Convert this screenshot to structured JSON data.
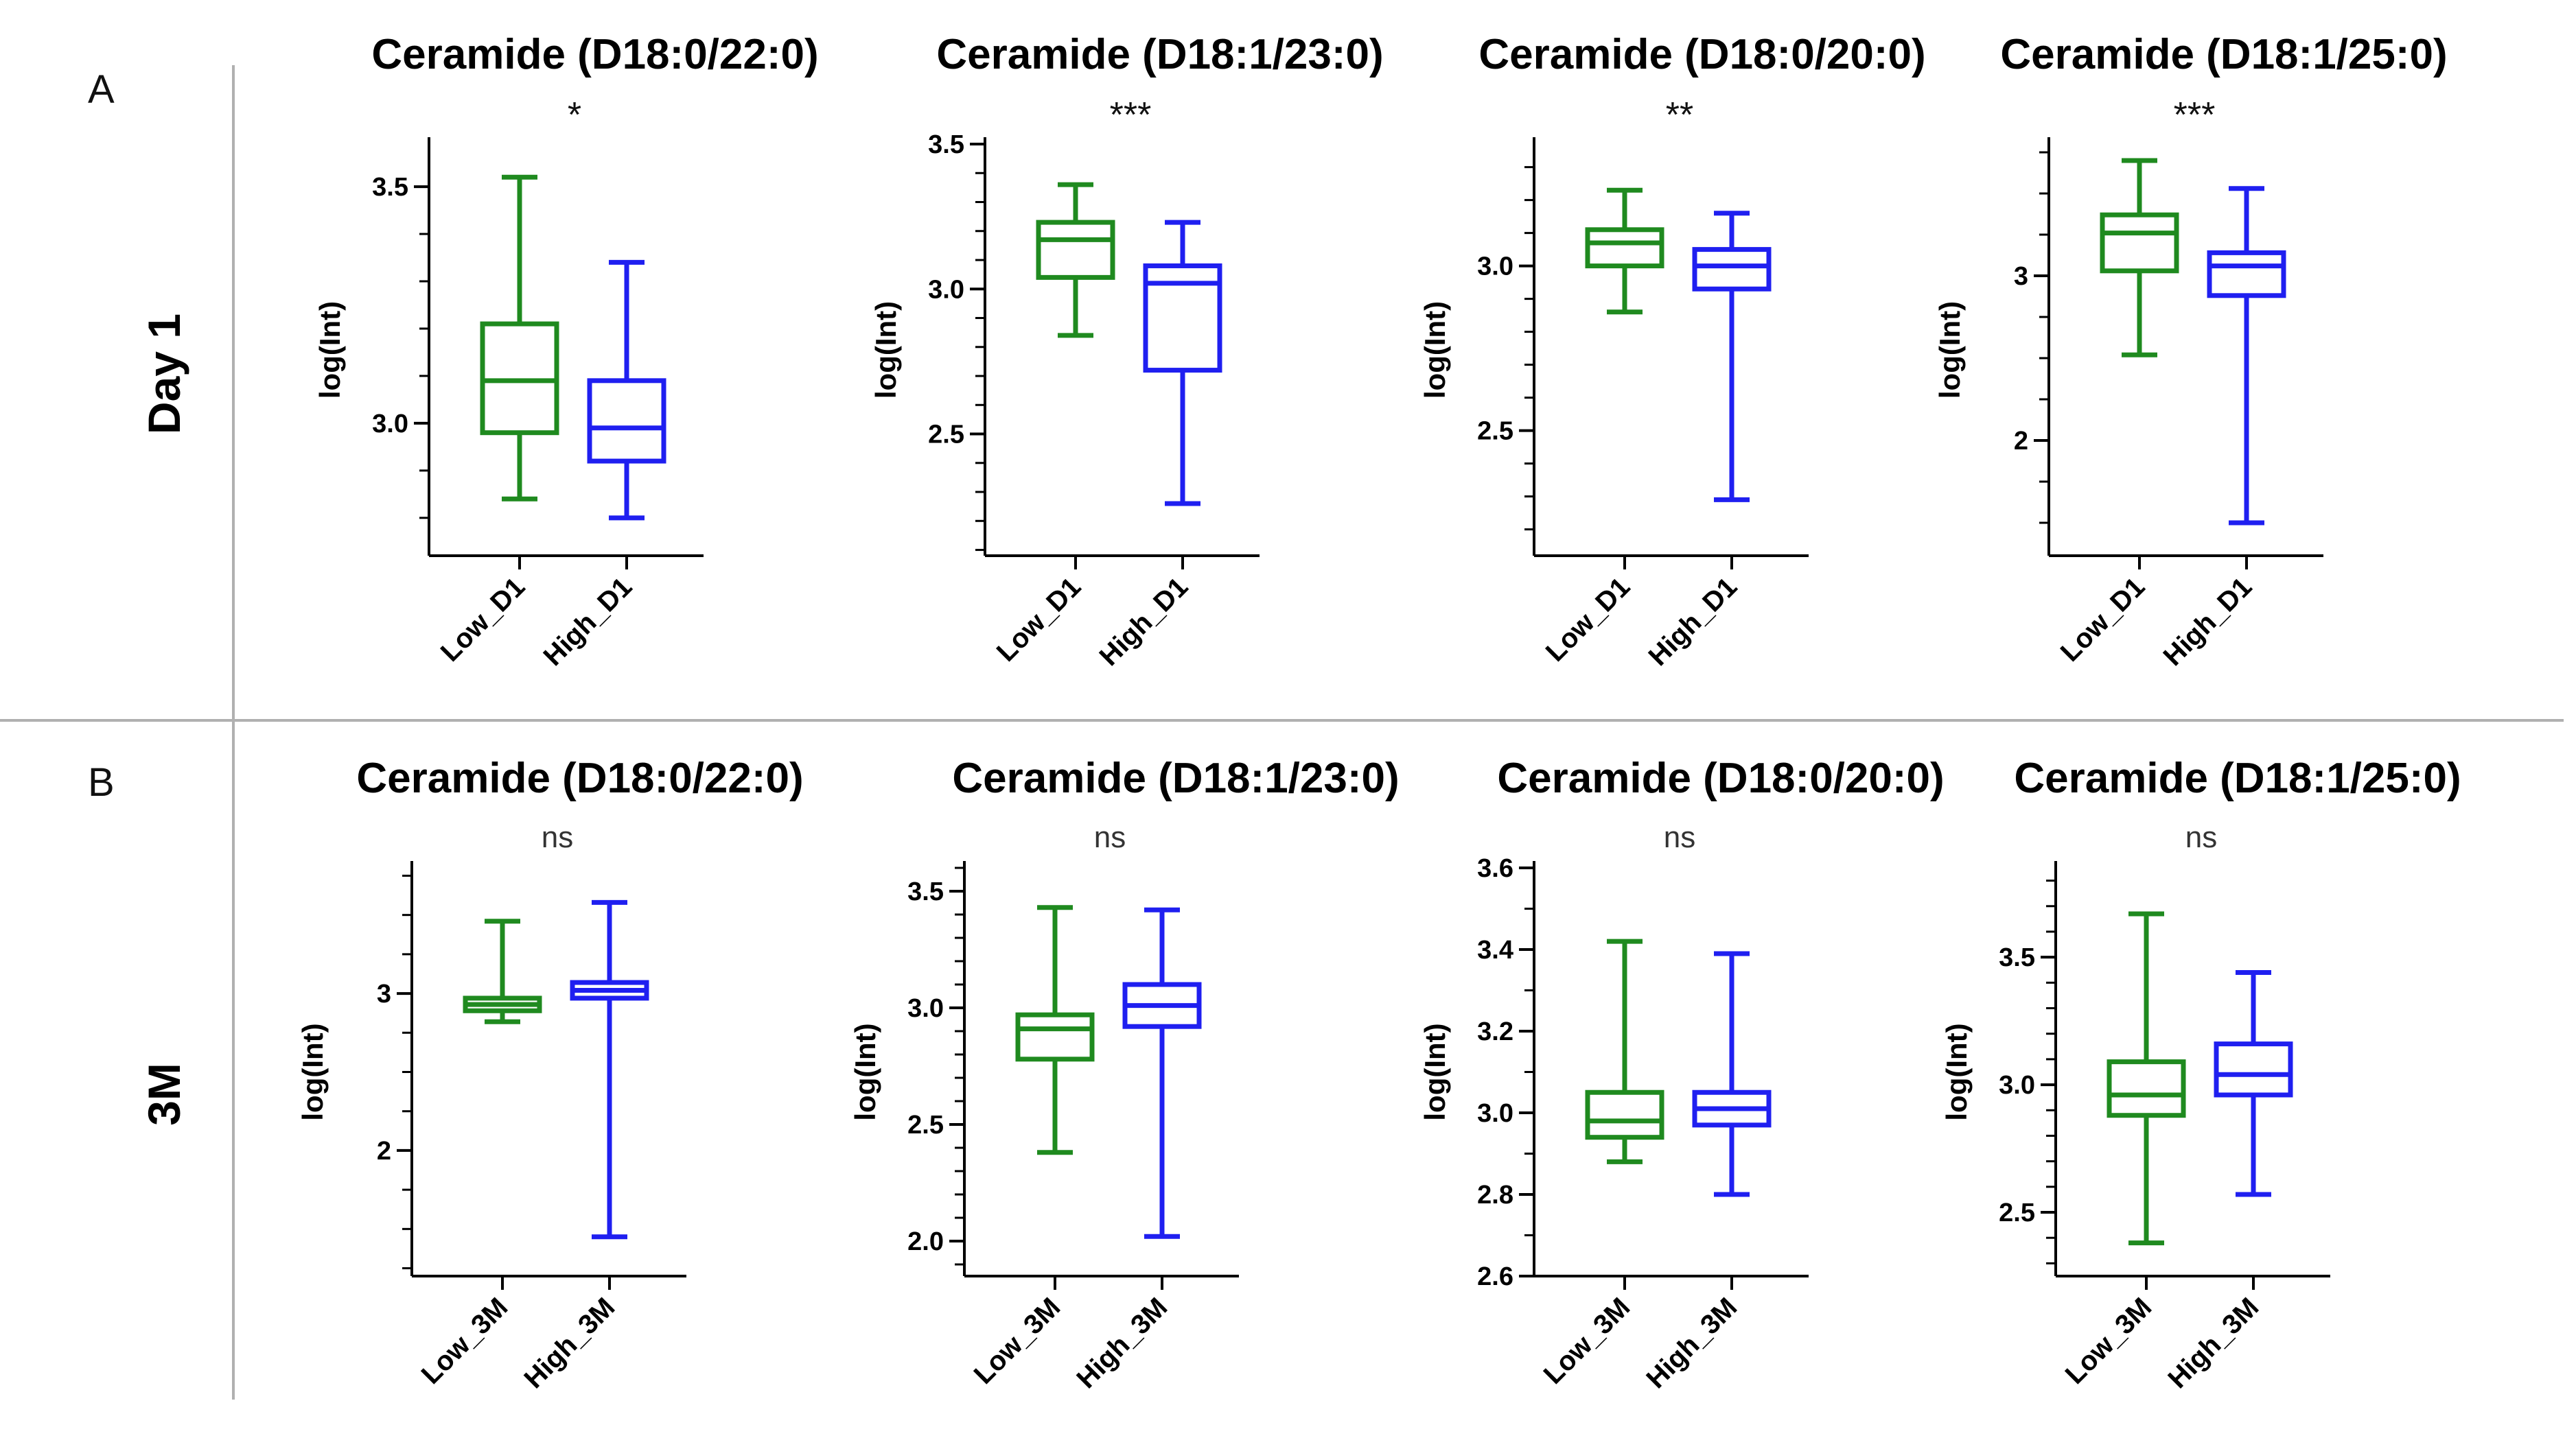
{
  "rows": [
    {
      "panel": "A",
      "label": "Day 1"
    },
    {
      "panel": "B",
      "label": "3M"
    }
  ],
  "colors": {
    "low": "#1f8a1f",
    "high": "#1f1ff0",
    "divider": "#b0b0b0",
    "axis": "#000000"
  },
  "chart_data": [
    {
      "type": "box",
      "title": "Ceramide (D18:0/22:0)",
      "significance": "*",
      "ylabel": "log(Int)",
      "ylim": [
        2.72,
        3.59
      ],
      "yticks": [
        3.0,
        3.5
      ],
      "ytick_labels": [
        "3.0",
        "3.5"
      ],
      "categories": [
        "Low_D1",
        "High_D1"
      ],
      "boxes": [
        {
          "name": "Low_D1",
          "min": 2.84,
          "q1": 2.98,
          "median": 3.09,
          "q3": 3.21,
          "max": 3.52
        },
        {
          "name": "High_D1",
          "min": 2.8,
          "q1": 2.92,
          "median": 2.99,
          "q3": 3.09,
          "max": 3.34
        }
      ]
    },
    {
      "type": "box",
      "title": "Ceramide (D18:1/23:0)",
      "significance": "***",
      "ylabel": "log(Int)",
      "ylim": [
        2.08,
        3.5
      ],
      "yticks": [
        2.5,
        3.0,
        3.5
      ],
      "ytick_labels": [
        "2.5",
        "3.0",
        "3.5"
      ],
      "categories": [
        "Low_D1",
        "High_D1"
      ],
      "boxes": [
        {
          "name": "Low_D1",
          "min": 2.84,
          "q1": 3.04,
          "median": 3.17,
          "q3": 3.23,
          "max": 3.36
        },
        {
          "name": "High_D1",
          "min": 2.26,
          "q1": 2.72,
          "median": 3.02,
          "q3": 3.08,
          "max": 3.23
        }
      ]
    },
    {
      "type": "box",
      "title": "Ceramide (D18:0/20:0)",
      "significance": "**",
      "ylabel": "log(Int)",
      "ylim": [
        2.12,
        3.37
      ],
      "yticks": [
        2.5,
        3.0
      ],
      "ytick_labels": [
        "2.5",
        "3.0"
      ],
      "categories": [
        "Low_D1",
        "High_D1"
      ],
      "boxes": [
        {
          "name": "Low_D1",
          "min": 2.86,
          "q1": 3.0,
          "median": 3.07,
          "q3": 3.11,
          "max": 3.23
        },
        {
          "name": "High_D1",
          "min": 2.29,
          "q1": 2.93,
          "median": 3.0,
          "q3": 3.05,
          "max": 3.16
        }
      ]
    },
    {
      "type": "box",
      "title": "Ceramide (D18:1/25:0)",
      "significance": "***",
      "ylabel": "log(Int)",
      "ylim": [
        1.3,
        3.8
      ],
      "yticks": [
        2,
        3
      ],
      "ytick_labels": [
        "2",
        "3"
      ],
      "categories": [
        "Low_D1",
        "High_D1"
      ],
      "boxes": [
        {
          "name": "Low_D1",
          "min": 2.52,
          "q1": 3.03,
          "median": 3.26,
          "q3": 3.37,
          "max": 3.7
        },
        {
          "name": "High_D1",
          "min": 1.5,
          "q1": 2.88,
          "median": 3.06,
          "q3": 3.14,
          "max": 3.53
        }
      ]
    },
    {
      "type": "box",
      "title": "Ceramide (D18:0/22:0)",
      "significance": "ns",
      "ylabel": "log(Int)",
      "ylim": [
        1.2,
        3.8
      ],
      "yticks": [
        2,
        3
      ],
      "ytick_labels": [
        "2",
        "3"
      ],
      "categories": [
        "Low_3M",
        "High_3M"
      ],
      "boxes": [
        {
          "name": "Low_3M",
          "min": 2.82,
          "q1": 2.89,
          "median": 2.93,
          "q3": 2.97,
          "max": 3.46
        },
        {
          "name": "High_3M",
          "min": 1.45,
          "q1": 2.97,
          "median": 3.02,
          "q3": 3.07,
          "max": 3.58
        }
      ]
    },
    {
      "type": "box",
      "title": "Ceramide (D18:1/23:0)",
      "significance": "ns",
      "ylabel": "log(Int)",
      "ylim": [
        1.85,
        3.6
      ],
      "yticks": [
        2.0,
        2.5,
        3.0,
        3.5
      ],
      "ytick_labels": [
        "2.0",
        "2.5",
        "3.0",
        "3.5"
      ],
      "categories": [
        "Low_3M",
        "High_3M"
      ],
      "boxes": [
        {
          "name": "Low_3M",
          "min": 2.38,
          "q1": 2.78,
          "median": 2.91,
          "q3": 2.97,
          "max": 3.43
        },
        {
          "name": "High_3M",
          "min": 2.02,
          "q1": 2.92,
          "median": 3.01,
          "q3": 3.1,
          "max": 3.42
        }
      ]
    },
    {
      "type": "box",
      "title": "Ceramide (D18:0/20:0)",
      "significance": "ns",
      "ylabel": "log(Int)",
      "ylim": [
        2.6,
        3.6
      ],
      "yticks": [
        2.6,
        2.8,
        3.0,
        3.2,
        3.4,
        3.6
      ],
      "ytick_labels": [
        "2.6",
        "2.8",
        "3.0",
        "3.2",
        "3.4",
        "3.6"
      ],
      "categories": [
        "Low_3M",
        "High_3M"
      ],
      "boxes": [
        {
          "name": "Low_3M",
          "min": 2.88,
          "q1": 2.94,
          "median": 2.98,
          "q3": 3.05,
          "max": 3.42
        },
        {
          "name": "High_3M",
          "min": 2.8,
          "q1": 2.97,
          "median": 3.01,
          "q3": 3.05,
          "max": 3.39
        }
      ]
    },
    {
      "type": "box",
      "title": "Ceramide (D18:1/25:0)",
      "significance": "ns",
      "ylabel": "log(Int)",
      "ylim": [
        2.25,
        3.85
      ],
      "yticks": [
        2.5,
        3.0,
        3.5
      ],
      "ytick_labels": [
        "2.5",
        "3.0",
        "3.5"
      ],
      "categories": [
        "Low_3M",
        "High_3M"
      ],
      "boxes": [
        {
          "name": "Low_3M",
          "min": 2.38,
          "q1": 2.88,
          "median": 2.96,
          "q3": 3.09,
          "max": 3.67
        },
        {
          "name": "High_3M",
          "min": 2.57,
          "q1": 2.96,
          "median": 3.04,
          "q3": 3.16,
          "max": 3.44
        }
      ]
    }
  ]
}
